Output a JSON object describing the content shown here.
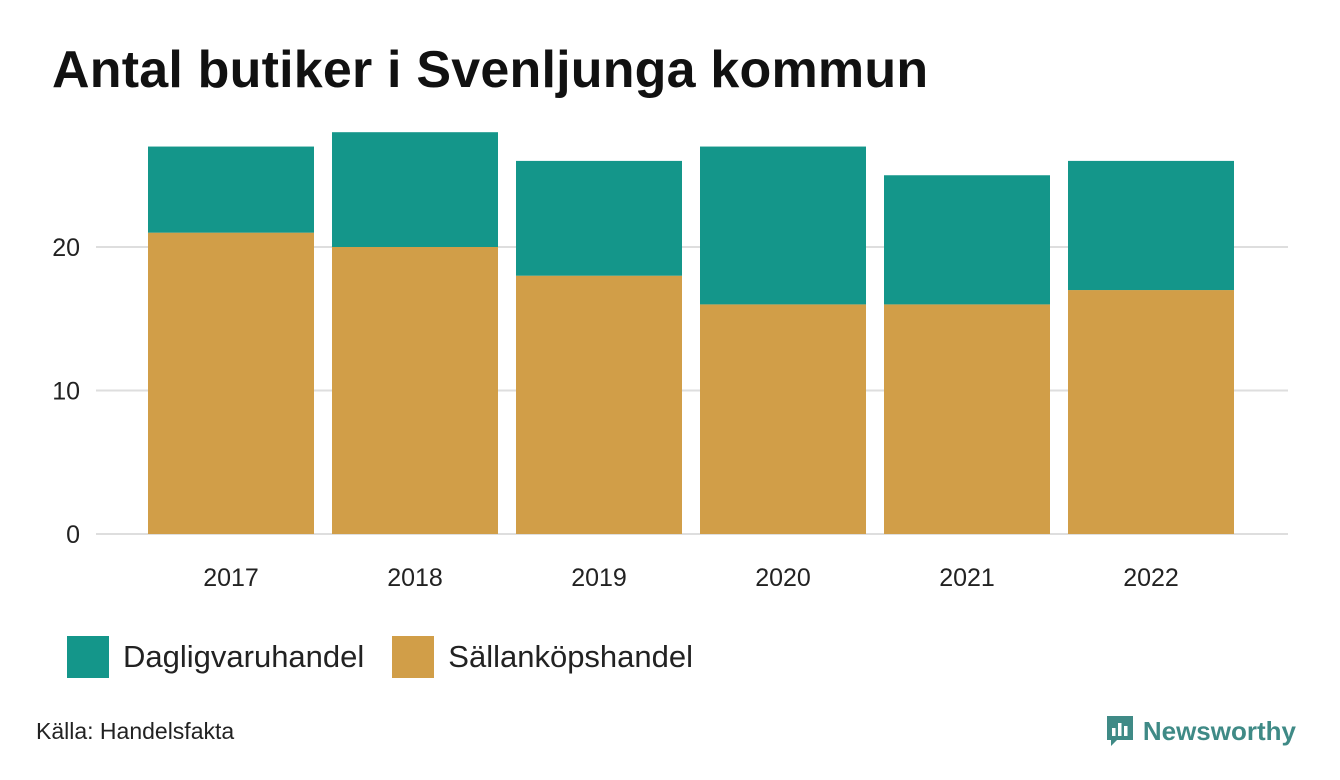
{
  "chart_data": {
    "type": "bar",
    "stacked": true,
    "title": "Antal butiker i Svenljunga kommun",
    "categories": [
      "2017",
      "2018",
      "2019",
      "2020",
      "2021",
      "2022"
    ],
    "series": [
      {
        "name": "Sällanköpshandel",
        "color": "#d19e48",
        "values": [
          21,
          20,
          18,
          16,
          16,
          17
        ]
      },
      {
        "name": "Dagligvaruhandel",
        "color": "#14968a",
        "values": [
          6,
          8,
          8,
          11,
          9,
          9
        ]
      }
    ],
    "yticks": [
      "0",
      "10",
      "20"
    ],
    "ylim": [
      0,
      28
    ],
    "grid": true,
    "legend_position": "bottom-left",
    "xlabel": "",
    "ylabel": ""
  },
  "legend": {
    "items": [
      {
        "label": "Dagligvaruhandel",
        "color": "#14968a"
      },
      {
        "label": "Sällanköpshandel",
        "color": "#d19e48"
      }
    ]
  },
  "footer": {
    "source": "Källa: Handelsfakta",
    "brand": "Newsworthy",
    "brand_icon": "newsworthy-logo-icon",
    "brand_color": "#3f8a86"
  }
}
